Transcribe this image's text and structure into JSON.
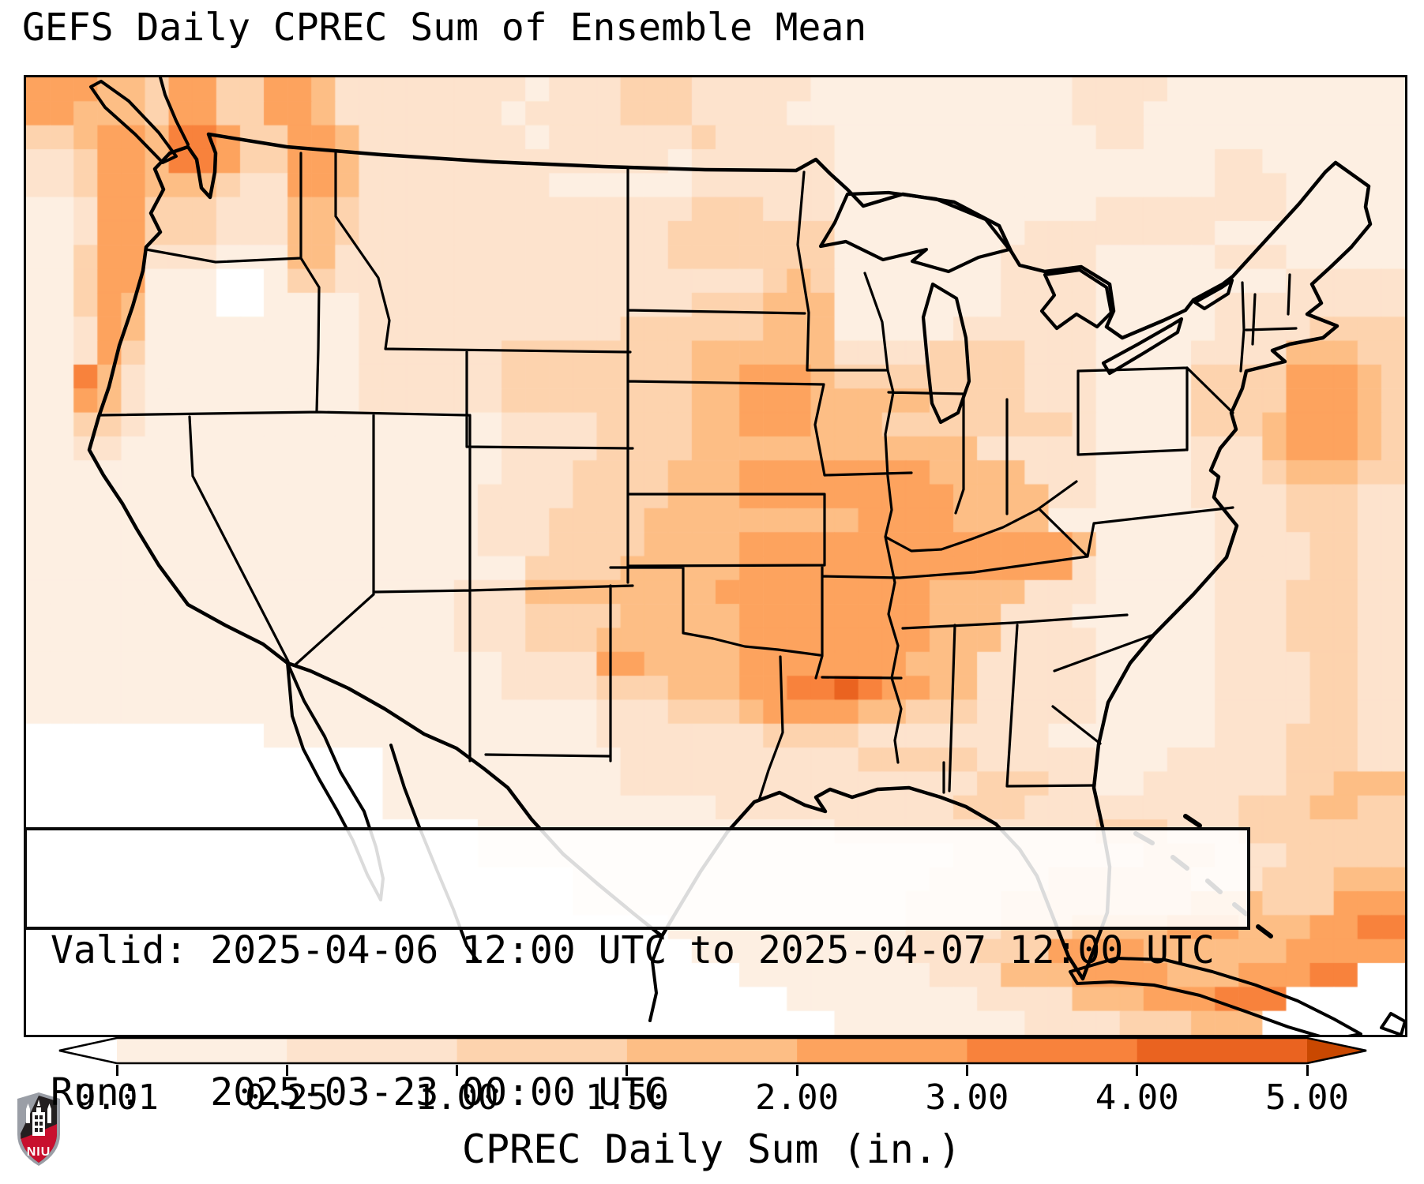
{
  "title": "GEFS Daily CPREC Sum of Ensemble Mean",
  "info_box": {
    "line1": "Valid: 2025-04-06 12:00 UTC to 2025-04-07 12:00 UTC",
    "line2": "Run:   2025-03-23 00:00 UTC"
  },
  "logo": {
    "text": "NIU"
  },
  "colorbar": {
    "label": "CPREC Daily Sum (in.)",
    "tick_labels": [
      "0.01",
      "0.25",
      "1.00",
      "1.50",
      "2.00",
      "3.00",
      "4.00",
      "5.00"
    ],
    "boundaries_in": [
      0.01,
      0.25,
      1.0,
      1.5,
      2.0,
      3.0,
      4.0,
      5.0
    ],
    "under_color": "#FFFFFF",
    "segment_colors": [
      "#FDEFE2",
      "#FDE3CD",
      "#FDD3AE",
      "#FDBE85",
      "#FDA35E",
      "#F8823C",
      "#EA6320"
    ],
    "over_color": "#C94801",
    "outline_color": "#000000"
  },
  "chart_data": {
    "type": "heatmap",
    "title": "GEFS Daily CPREC Sum of Ensemble Mean",
    "xlabel": "CPREC Daily Sum (in.)",
    "units": "inches per day",
    "region": "CONUS and surroundings",
    "legend_position": "bottom",
    "bin_edges_in": [
      0.01,
      0.25,
      1.0,
      1.5,
      2.0,
      3.0,
      4.0,
      5.0
    ],
    "palette": [
      "#FFFFFF",
      "#FDEFE2",
      "#FDE3CD",
      "#FDD3AE",
      "#FDBE85",
      "#FDA35E",
      "#F8823C",
      "#EA6320",
      "#C94801"
    ],
    "bin_meaning": "digit = color bin index: 0 = <0.01 in (white/under), 1..7 = between successive edges, 8 = >5.00 in (over)",
    "grid_shape": [
      40,
      58
    ],
    "grid_bins": [
      "5554435533554222222221222333222221111111111122221111111111",
      "5544435533554222222212222333222211111111111122211111111111",
      "3345546653355422222221222222322222111111111112211111111111",
      "2235546653355422222222222221222222111111111111111122111111",
      "2235544432255422222222111111222222111111111111111122211111",
      "1125533322244322222222222222333222111111111112222222211111",
      "1125533322244322222222222223333333111111112222222211111111",
      "1135522211144222222222222223333333111111122221111122211111",
      "1135511100133222222222222222222343111111122221111111122222",
      "1135411100111122222222222222333444111111122221111122222222",
      "1125411111111122222222222333333444111112222221111122223333",
      "1125311111111122222233333333444444222233332221111222244433",
      "1164211111111122222233333333445554333333332221111333355543",
      "1154211111111122222233333333445554444433332221111333355543",
      "1133211111111111111122223333445554443333333321111333455543",
      "1122111111111111111122223333444444444444222221111222455543",
      "1111111111111111111122233334445555555544442221111222344433",
      "1111111111111111111222233334445555555554444221111222233322",
      "1111111111111111111222333344444444455554444111111122233322",
      "1111111111111111111222333344445555555555555541111122223322",
      "1111111111111111111113333444445555555555555521111122223322",
      "1111111111111111112224444444455555555544442221111122233322",
      "1111111111111111112223333444445555555544422211111122233322",
      "1111111111111111112223334444445555555544422221111122233322",
      "1111111111111111111122225544445555555444222221111122223322",
      "1111111111111111111122223334445566765544222221111122223322",
      "1111111111111111111111112223334555544333222221111122223322",
      "0000000000111111111111112222222333322222222111111122233322",
      "0000000000000001111111111222222222233333222221112222233322",
      "0000000000000001111111111222222222222222333221122222233444",
      "0000000000000001111111111111122222222223332222222223334433",
      "0000000000000000000111111111111111222222222223332223333333",
      "0000000000000000000111111111111111111112222222233322233333",
      "0000000000000000000000011111111111111122222333333222333444",
      "0000000000000000000000011111111111111222233333333444333555",
      "0000000000000000000000000001111111111222233344445554445566",
      "0000000000000000000000000000111111111222333555544444455555",
      "0000000000000000000000000000001111111122244455554445556600",
      "0000000000000000000000000000000011111111222244455566600000",
      "0000000000000000000000000000000000111111112222333444000000"
    ]
  }
}
